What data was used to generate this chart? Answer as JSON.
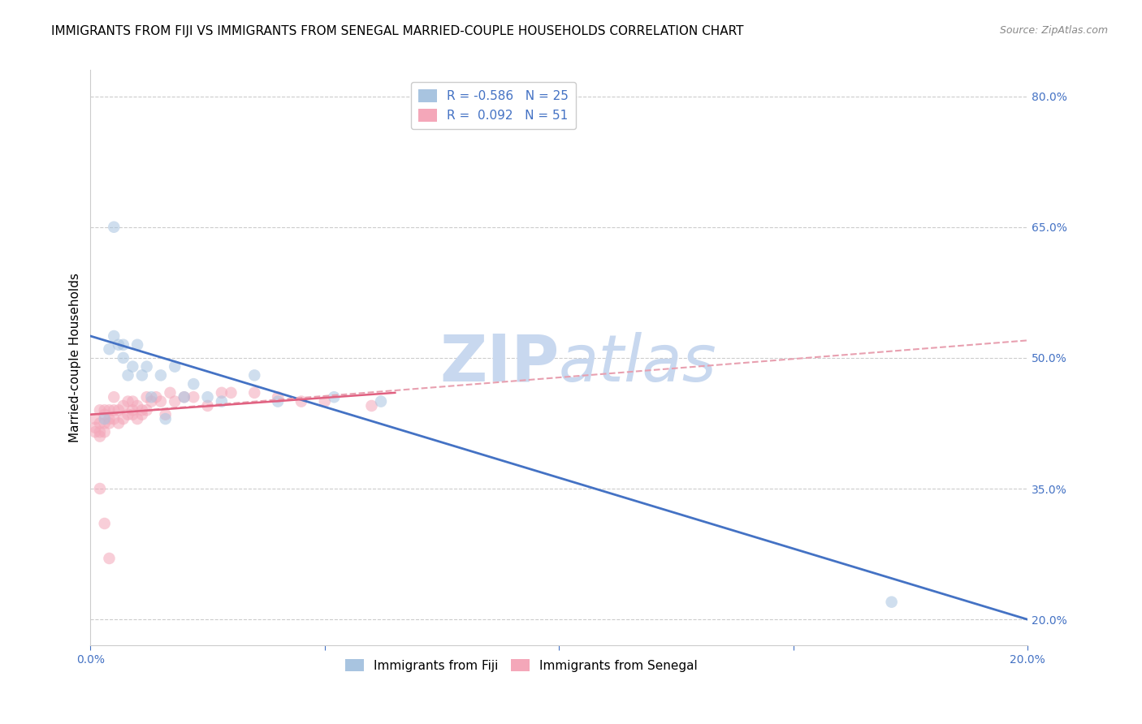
{
  "title": "IMMIGRANTS FROM FIJI VS IMMIGRANTS FROM SENEGAL MARRIED-COUPLE HOUSEHOLDS CORRELATION CHART",
  "source": "Source: ZipAtlas.com",
  "ylabel": "Married-couple Households",
  "xlim": [
    0.0,
    0.2
  ],
  "ylim": [
    0.17,
    0.83
  ],
  "right_yticks": [
    0.2,
    0.35,
    0.5,
    0.65,
    0.8
  ],
  "right_yticklabels": [
    "20.0%",
    "35.0%",
    "50.0%",
    "65.0%",
    "80.0%"
  ],
  "fiji_color": "#a8c4e0",
  "senegal_color": "#f4a7b9",
  "fiji_line_color": "#4472c4",
  "senegal_line_solid_color": "#e06080",
  "senegal_line_dashed_color": "#e8a0b0",
  "fiji_R": -0.586,
  "fiji_N": 25,
  "senegal_R": 0.092,
  "senegal_N": 51,
  "fiji_scatter_x": [
    0.003,
    0.004,
    0.005,
    0.006,
    0.007,
    0.007,
    0.008,
    0.009,
    0.01,
    0.011,
    0.012,
    0.013,
    0.015,
    0.016,
    0.018,
    0.02,
    0.022,
    0.025,
    0.028,
    0.035,
    0.04,
    0.052,
    0.062,
    0.171,
    0.005
  ],
  "fiji_scatter_y": [
    0.43,
    0.51,
    0.525,
    0.515,
    0.5,
    0.515,
    0.48,
    0.49,
    0.515,
    0.48,
    0.49,
    0.455,
    0.48,
    0.43,
    0.49,
    0.455,
    0.47,
    0.455,
    0.45,
    0.48,
    0.45,
    0.455,
    0.45,
    0.22,
    0.65
  ],
  "senegal_scatter_x": [
    0.001,
    0.001,
    0.001,
    0.002,
    0.002,
    0.002,
    0.002,
    0.003,
    0.003,
    0.003,
    0.003,
    0.004,
    0.004,
    0.004,
    0.005,
    0.005,
    0.005,
    0.006,
    0.006,
    0.007,
    0.007,
    0.008,
    0.008,
    0.009,
    0.009,
    0.009,
    0.01,
    0.01,
    0.011,
    0.011,
    0.012,
    0.012,
    0.013,
    0.014,
    0.015,
    0.016,
    0.017,
    0.018,
    0.02,
    0.022,
    0.025,
    0.028,
    0.03,
    0.035,
    0.04,
    0.045,
    0.05,
    0.06,
    0.002,
    0.003,
    0.004
  ],
  "senegal_scatter_y": [
    0.43,
    0.42,
    0.415,
    0.44,
    0.425,
    0.415,
    0.41,
    0.435,
    0.44,
    0.425,
    0.415,
    0.43,
    0.44,
    0.425,
    0.455,
    0.44,
    0.43,
    0.44,
    0.425,
    0.445,
    0.43,
    0.45,
    0.435,
    0.44,
    0.45,
    0.435,
    0.445,
    0.43,
    0.44,
    0.435,
    0.44,
    0.455,
    0.45,
    0.455,
    0.45,
    0.435,
    0.46,
    0.45,
    0.455,
    0.455,
    0.445,
    0.46,
    0.46,
    0.46,
    0.455,
    0.45,
    0.45,
    0.445,
    0.35,
    0.31,
    0.27
  ],
  "fiji_line_x": [
    0.0,
    0.2
  ],
  "fiji_line_y": [
    0.525,
    0.2
  ],
  "senegal_solid_line_x": [
    0.0,
    0.065
  ],
  "senegal_solid_line_y": [
    0.435,
    0.46
  ],
  "senegal_dashed_line_x": [
    0.0,
    0.2
  ],
  "senegal_dashed_line_y": [
    0.435,
    0.52
  ],
  "watermark_zip": "ZIP",
  "watermark_atlas": "atlas",
  "watermark_color": "#c8d8ef",
  "background_color": "#ffffff",
  "grid_color": "#cccccc",
  "title_fontsize": 11,
  "axis_label_fontsize": 11,
  "tick_fontsize": 10,
  "legend_fontsize": 11,
  "marker_size": 110,
  "marker_alpha": 0.55
}
